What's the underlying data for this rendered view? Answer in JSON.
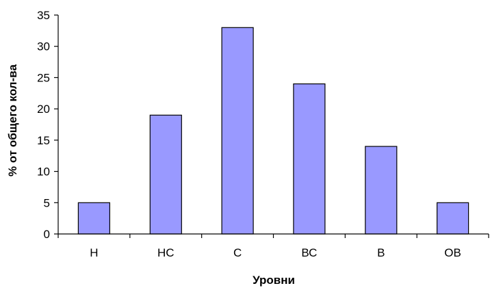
{
  "chart_data": {
    "type": "bar",
    "categories": [
      "Н",
      "НС",
      "С",
      "ВС",
      "В",
      "ОВ"
    ],
    "values": [
      5,
      19,
      33,
      24,
      14,
      5
    ],
    "title": "",
    "xlabel": "Уровни",
    "ylabel": "% от общего кол-ва",
    "ylim": [
      0,
      35
    ],
    "yticks": [
      "0",
      "5",
      "10",
      "15",
      "20",
      "25",
      "30",
      "35"
    ],
    "grid": false,
    "legend": "none",
    "colors": {
      "bar_fill": "#9999FF",
      "bar_stroke": "#000000",
      "axis": "#000000"
    }
  }
}
